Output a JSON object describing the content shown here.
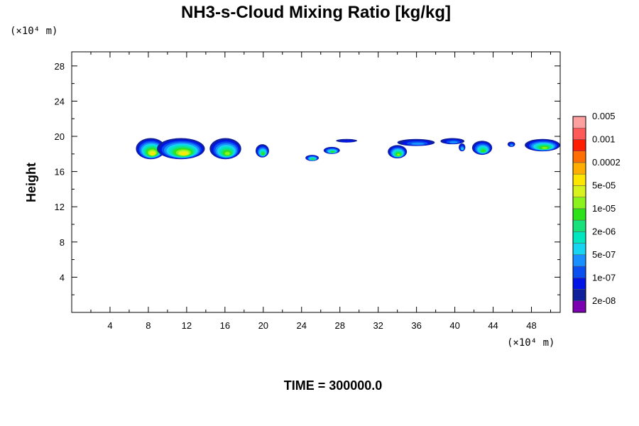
{
  "chart_data": {
    "type": "heatmap",
    "title": "NH3-s-Cloud Mixing Ratio [kg/kg]",
    "xlabel": "",
    "ylabel": "Height",
    "x_unit": "(×10⁴ m)",
    "y_unit": "(×10⁴ m)",
    "footer": "TIME = 300000.0",
    "xlim": [
      0,
      51
    ],
    "ylim": [
      0,
      29.6
    ],
    "x_ticks": [
      4,
      8,
      12,
      16,
      20,
      24,
      28,
      32,
      36,
      40,
      44,
      48
    ],
    "y_ticks": [
      4,
      8,
      12,
      16,
      20,
      24,
      28
    ],
    "colorbar": {
      "colors": [
        "#7a00b0",
        "#10209a",
        "#0014e6",
        "#0a50f0",
        "#1990ff",
        "#17d4f0",
        "#00e6c0",
        "#18e07a",
        "#2ee21a",
        "#8cf21e",
        "#d8f21e",
        "#ffe600",
        "#ffae00",
        "#ff6e00",
        "#ff1e00",
        "#ff5a5a",
        "#ffa0a0"
      ],
      "labels": [
        "2e-08",
        "1e-07",
        "5e-07",
        "2e-06",
        "1e-05",
        "5e-05",
        "0.0002",
        "0.001",
        "0.005"
      ]
    },
    "cloud_patches": [
      {
        "x0": 6.7,
        "x1": 9.8,
        "y0": 17.4,
        "y1": 19.8,
        "peak": 11
      },
      {
        "x0": 8.9,
        "x1": 13.9,
        "y0": 17.4,
        "y1": 19.8,
        "peak": 11
      },
      {
        "x0": 14.4,
        "x1": 17.7,
        "y0": 17.4,
        "y1": 19.8,
        "peak": 9
      },
      {
        "x0": 19.2,
        "x1": 20.6,
        "y0": 17.6,
        "y1": 19.1,
        "peak": 8
      },
      {
        "x0": 24.4,
        "x1": 25.8,
        "y0": 17.2,
        "y1": 17.9,
        "peak": 8
      },
      {
        "x0": 26.3,
        "x1": 28.0,
        "y0": 18.0,
        "y1": 18.8,
        "peak": 8
      },
      {
        "x0": 27.6,
        "x1": 29.8,
        "y0": 19.3,
        "y1": 19.7,
        "peak": 2
      },
      {
        "x0": 33.0,
        "x1": 35.0,
        "y0": 17.5,
        "y1": 19.0,
        "peak": 9
      },
      {
        "x0": 34.0,
        "x1": 37.9,
        "y0": 18.9,
        "y1": 19.7,
        "peak": 4
      },
      {
        "x0": 38.5,
        "x1": 41.0,
        "y0": 19.1,
        "y1": 19.8,
        "peak": 4
      },
      {
        "x0": 40.4,
        "x1": 41.1,
        "y0": 18.3,
        "y1": 19.2,
        "peak": 5
      },
      {
        "x0": 41.8,
        "x1": 43.9,
        "y0": 17.9,
        "y1": 19.5,
        "peak": 8
      },
      {
        "x0": 45.5,
        "x1": 46.3,
        "y0": 18.8,
        "y1": 19.4,
        "peak": 4
      },
      {
        "x0": 47.3,
        "x1": 51.0,
        "y0": 18.3,
        "y1": 19.7,
        "peak": 9
      }
    ]
  }
}
